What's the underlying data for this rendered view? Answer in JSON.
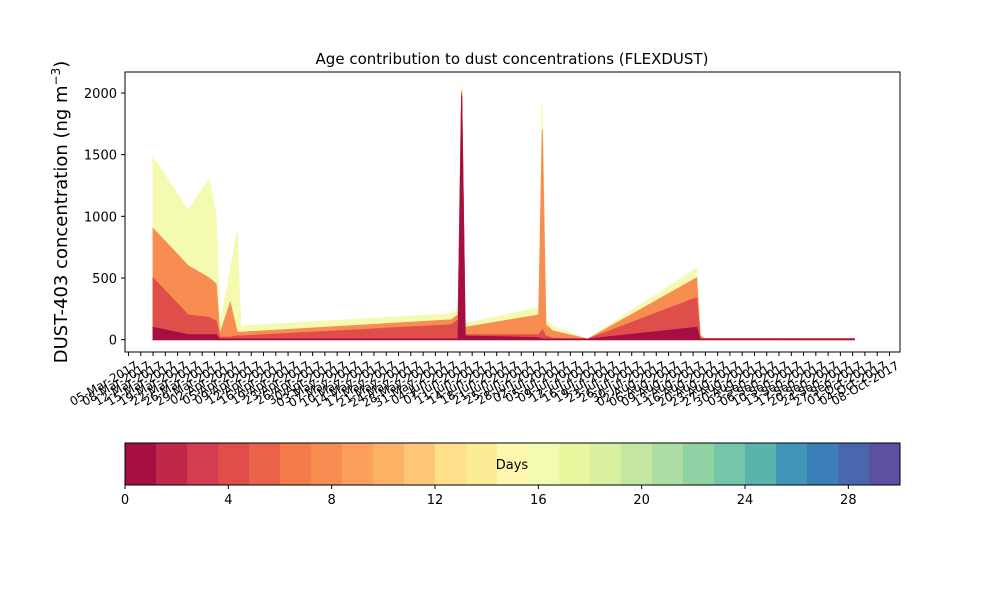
{
  "chart_data": [
    {
      "type": "area",
      "title": "Age contribution to dust concentrations (FLEXDUST)",
      "ylabel": "DUST-403 concentration (ng m",
      "ylabel_sup": "−3",
      "ylabel_close": ")",
      "ylim": [
        -100,
        2170
      ],
      "yticks": [
        0,
        500,
        1000,
        1500,
        2000
      ],
      "xlim": [
        "2017-03-01",
        "2017-10-08"
      ],
      "xtick_rotation": "30°, right-aligned",
      "xticks_visible_labels": [
        "05-Mar-2017",
        "01-Oct-2017"
      ],
      "stacked_series": "cumulative contributions by particle age, one band per age day (0–30 days), colored by the Days colorbar",
      "x": [
        "2017-03-09",
        "2017-03-19",
        "2017-03-25",
        "2017-03-27",
        "2017-03-28",
        "2017-03-31",
        "2017-04-02",
        "2017-04-03",
        "2017-06-02",
        "2017-06-04",
        "2017-06-05",
        "2017-06-06",
        "2017-06-27",
        "2017-06-28",
        "2017-06-29",
        "2017-07-01",
        "2017-07-11",
        "2017-08-11",
        "2017-08-12",
        "2017-08-13",
        "2017-09-25"
      ],
      "series": [
        {
          "age_day": 0,
          "values": [
            5,
            5,
            5,
            5,
            5,
            5,
            5,
            5,
            5,
            5,
            20,
            5,
            5,
            5,
            5,
            5,
            5,
            5,
            5,
            5,
            5
          ]
        },
        {
          "age_day": 1,
          "values": [
            100,
            40,
            40,
            40,
            5,
            5,
            5,
            5,
            5,
            5,
            1980,
            30,
            15,
            5,
            5,
            5,
            5,
            100,
            5,
            5,
            5
          ]
        },
        {
          "age_day": 4,
          "values": [
            500,
            200,
            180,
            150,
            20,
            20,
            30,
            30,
            120,
            160,
            2000,
            40,
            40,
            80,
            30,
            10,
            5,
            340,
            10,
            5,
            5
          ]
        },
        {
          "age_day": 8,
          "values": [
            900,
            600,
            500,
            450,
            40,
            300,
            60,
            60,
            160,
            200,
            2020,
            100,
            200,
            1700,
            120,
            70,
            5,
            500,
            30,
            10,
            8
          ]
        },
        {
          "age_day": 16,
          "values": [
            1480,
            1050,
            1300,
            1000,
            100,
            560,
            880,
            110,
            210,
            240,
            2060,
            130,
            260,
            1910,
            160,
            110,
            5,
            580,
            50,
            12,
            10
          ]
        }
      ],
      "colorbar": {
        "label": "Days",
        "ticks": [
          0,
          4,
          8,
          12,
          16,
          20,
          24,
          28
        ],
        "range": [
          0,
          30
        ],
        "colors": [
          "#a50f42",
          "#c0264a",
          "#d43d4f",
          "#e04e4b",
          "#ea6249",
          "#f47c4c",
          "#f88d52",
          "#fca05b",
          "#fdb366",
          "#fec675",
          "#fee08b",
          "#fdec96",
          "#fff6b0",
          "#f4fab0",
          "#eaf79e",
          "#d9f0a0",
          "#c3e79f",
          "#abdda4",
          "#8fd2a4",
          "#74c6a9",
          "#5bb3ad",
          "#4196b7",
          "#3a7fb8",
          "#4a67ae",
          "#5e4fa2"
        ]
      }
    }
  ]
}
